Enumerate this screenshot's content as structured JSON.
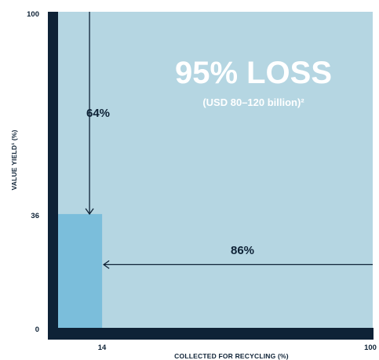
{
  "chart_data": {
    "type": "area",
    "xlabel": "COLLECTED FOR RECYCLING (%)",
    "ylabel": "VALUE YIELD¹ (%)",
    "xlim": [
      0,
      100
    ],
    "ylim": [
      0,
      100
    ],
    "x_ticks": [
      "14",
      "100"
    ],
    "y_ticks": [
      "100",
      "36",
      "0"
    ],
    "retained_block": {
      "x": 14,
      "y": 36
    },
    "headline": "95% LOSS",
    "subline": "(USD 80–120 billion)²",
    "annotations": [
      {
        "label": "64%",
        "direction": "down",
        "x": 10,
        "y_from": 100,
        "y_to": 36
      },
      {
        "label": "86%",
        "direction": "left",
        "y": 20,
        "x_from": 100,
        "x_to": 14
      }
    ],
    "colors": {
      "loss_area": "#b5d6e2",
      "retained_area": "#7bbedb",
      "axis_frame": "#0e2236",
      "headline_text": "#ffffff"
    }
  }
}
